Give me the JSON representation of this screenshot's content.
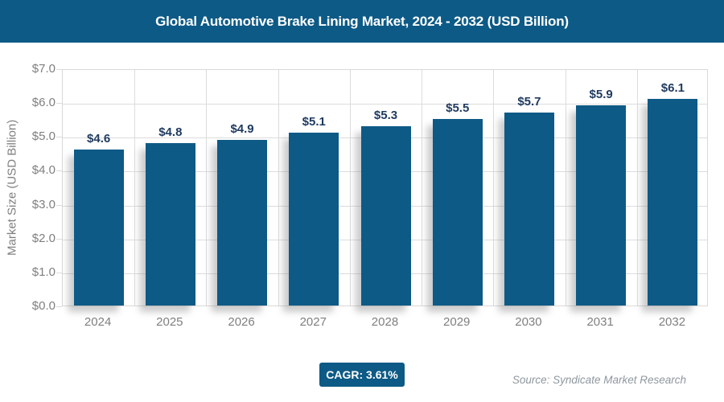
{
  "header": {
    "title": "Global Automotive Brake Lining Market, 2024 - 2032 (USD Billion)"
  },
  "chart_data": {
    "type": "bar",
    "title": "Global Automotive Brake Lining Market, 2024 - 2032 (USD Billion)",
    "categories": [
      "2024",
      "2025",
      "2026",
      "2027",
      "2028",
      "2029",
      "2030",
      "2031",
      "2032"
    ],
    "values": [
      4.6,
      4.8,
      4.9,
      5.1,
      5.3,
      5.5,
      5.7,
      5.9,
      6.1
    ],
    "value_labels": [
      "$4.6",
      "$4.8",
      "$4.9",
      "$5.1",
      "$5.3",
      "$5.5",
      "$5.7",
      "$5.9",
      "$6.1"
    ],
    "xlabel": "",
    "ylabel": "Market Size (USD Billion)",
    "ylim": [
      0,
      7
    ],
    "ytick_step": 1,
    "ytick_labels": [
      "$0.0",
      "$1.0",
      "$2.0",
      "$3.0",
      "$4.0",
      "$5.0",
      "$6.0",
      "$7.0"
    ],
    "grid": true,
    "legend": "none"
  },
  "footer": {
    "cagr_label": "CAGR: 3.61%",
    "source": "Source: Syndicate Market Research"
  },
  "colors": {
    "accent": "#0D5A86",
    "grid": "#dcdcdc",
    "tick_text": "#7f7f7f",
    "value_text": "#1f3a5f",
    "source_text": "#8e979e"
  }
}
